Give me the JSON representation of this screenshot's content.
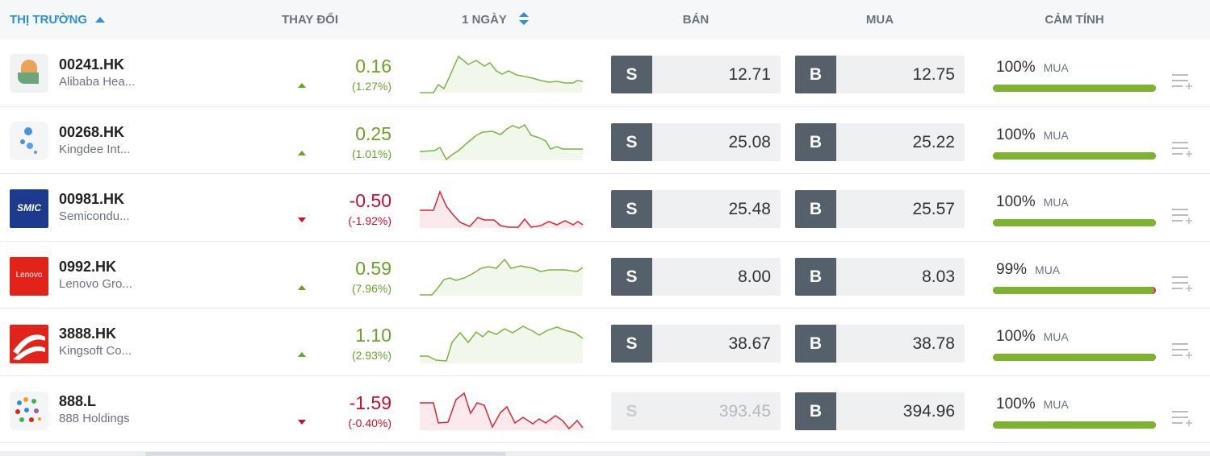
{
  "header": {
    "market": "THỊ TRƯỜNG",
    "change": "THAY ĐỔI",
    "period": "1 NGÀY",
    "sell": "BÁN",
    "buy": "MUA",
    "sentiment": "CẢM TÍNH"
  },
  "sell_button": "S",
  "buy_button": "B",
  "rows": [
    {
      "symbol": "00241.HK",
      "name": "Alibaba Hea...",
      "change": "0.16",
      "change_pct": "(1.27%)",
      "sell": "12.71",
      "buy": "12.75",
      "sentiment": "100%",
      "sentiment_label": "MUA"
    },
    {
      "symbol": "00268.HK",
      "name": "Kingdee Int...",
      "change": "0.25",
      "change_pct": "(1.01%)",
      "sell": "25.08",
      "buy": "25.22",
      "sentiment": "100%",
      "sentiment_label": "MUA"
    },
    {
      "symbol": "00981.HK",
      "name": "Semicondu...",
      "logo_text": "SMIC",
      "change": "-0.50",
      "change_pct": "(-1.92%)",
      "sell": "25.48",
      "buy": "25.57",
      "sentiment": "100%",
      "sentiment_label": "MUA"
    },
    {
      "symbol": "0992.HK",
      "name": "Lenovo Gro...",
      "logo_text": "Lenovo",
      "change": "0.59",
      "change_pct": "(7.96%)",
      "sell": "8.00",
      "buy": "8.03",
      "sentiment": "99%",
      "sentiment_label": "MUA"
    },
    {
      "symbol": "3888.HK",
      "name": "Kingsoft Co...",
      "change": "1.10",
      "change_pct": "(2.93%)",
      "sell": "38.67",
      "buy": "38.78",
      "sentiment": "100%",
      "sentiment_label": "MUA"
    },
    {
      "symbol": "888.L",
      "name": "888 Holdings",
      "change": "-1.59",
      "change_pct": "(-0.40%)",
      "sell": "393.45",
      "sell_enabled": false,
      "buy": "394.96",
      "sentiment": "100%",
      "sentiment_label": "MUA"
    }
  ]
}
